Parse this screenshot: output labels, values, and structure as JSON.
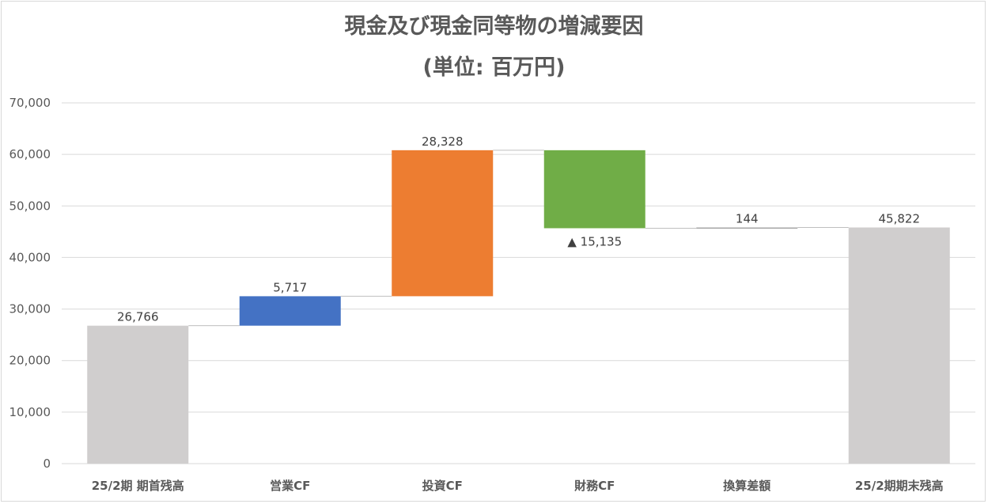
{
  "chart_data": {
    "type": "waterfall",
    "title": "現金及び現金同等物の増減要因",
    "subtitle": "(単位: 百万円)",
    "categories": [
      "25/2期 期首残高",
      "営業CF",
      "投資CF",
      "財務CF",
      "換算差額",
      "25/2期期末残高"
    ],
    "values": [
      26766,
      5717,
      28328,
      -15135,
      144,
      45822
    ],
    "kinds": [
      "total",
      "increase",
      "increase",
      "decrease",
      "increase",
      "total"
    ],
    "data_labels": [
      "26,766",
      "5,717",
      "28,328",
      "▲ 15,135",
      "144",
      "45,822"
    ],
    "colors": [
      "#d0cece",
      "#4472c4",
      "#ed7d31",
      "#70ad47",
      "#a5a5a5",
      "#d0cece"
    ],
    "y_ticks": [
      "0",
      "10,000",
      "20,000",
      "30,000",
      "40,000",
      "50,000",
      "60,000",
      "70,000"
    ],
    "ylim": [
      0,
      70000
    ],
    "grid": true,
    "connector_lines": true
  }
}
